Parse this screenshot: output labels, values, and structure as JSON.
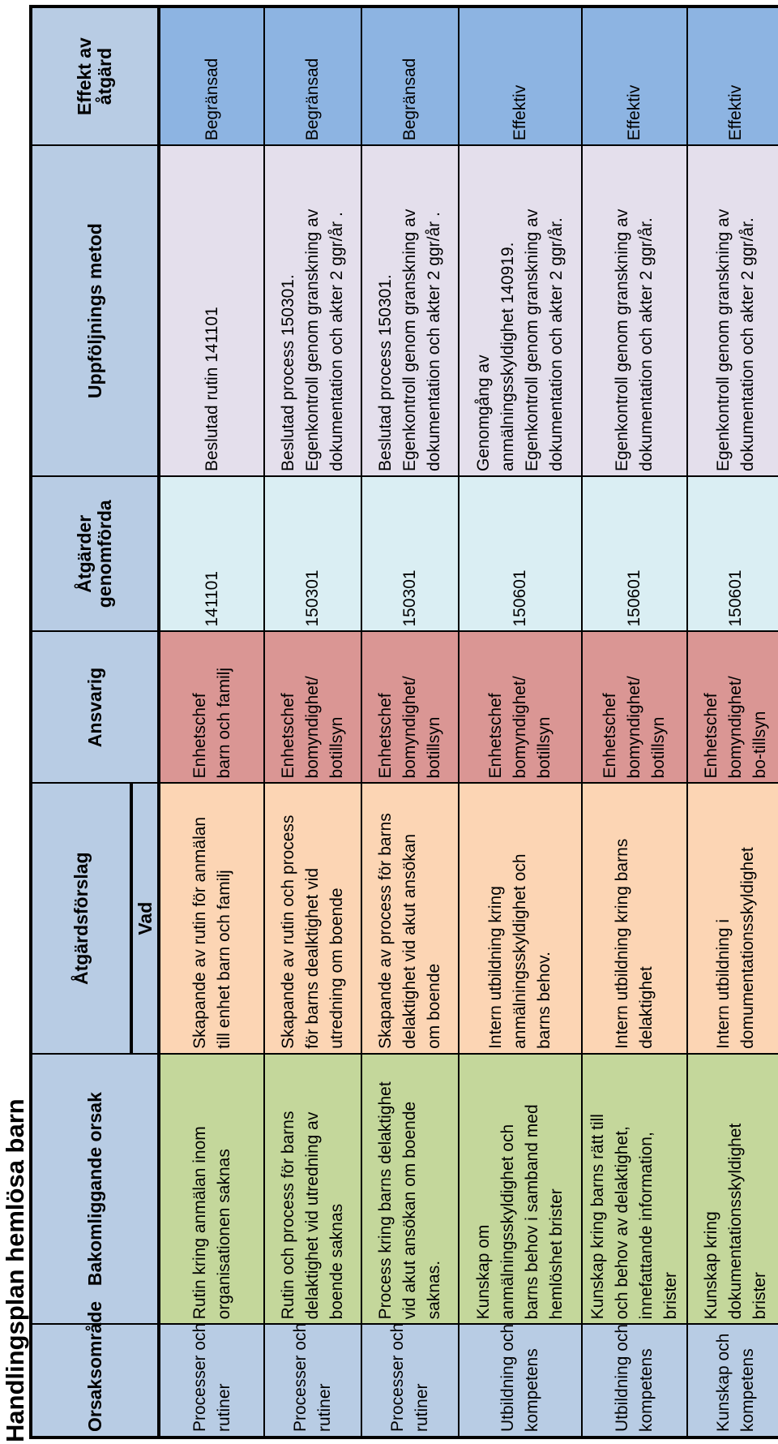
{
  "title": "Handlingsplan hemlösa barn",
  "headers": {
    "area": "Orsaksområde",
    "cause": "Bakomliggande orsak",
    "proposal": "Åtgärdsförslag",
    "proposal_sub": "Vad",
    "responsible": "Ansvarig",
    "done_1": "Åtgärder",
    "done_2": "genomförda",
    "followup": "Uppföljnings metod",
    "effect_1": "Effekt av",
    "effect_2": "åtgärd"
  },
  "rows": [
    {
      "area": [
        "Processer och",
        "rutiner"
      ],
      "cause": [
        "Rutin kring anmälan inom",
        "organisationen saknas"
      ],
      "what": [
        "Skapande av rutin för anmälan",
        "till enhet barn och familj"
      ],
      "responsible": [
        "Enhetschef",
        "barn och familj"
      ],
      "done": "141101",
      "followup": [
        "Beslutad rutin 141101"
      ],
      "effect": "Begränsad"
    },
    {
      "area": [
        "Processer och",
        "rutiner"
      ],
      "cause": [
        "Rutin och process för barns",
        "delaktighet vid utredning av",
        "boende saknas"
      ],
      "what": [
        "Skapande av rutin och process",
        "för barns dealktighet vid",
        "utredning om boende"
      ],
      "responsible": [
        "Enhetschef",
        "bomyndighet/",
        "botillsyn"
      ],
      "done": "150301",
      "followup": [
        "Beslutad process 150301.",
        "Egenkontroll genom granskning av",
        "dokumentation och akter 2 ggr/år ."
      ],
      "effect": "Begränsad"
    },
    {
      "area": [
        "Processer och",
        "rutiner"
      ],
      "cause": [
        "Process kring barns delaktighet",
        "vid akut ansökan om boende",
        "saknas."
      ],
      "what": [
        "Skapande av  process för barns",
        "delaktighet vid akut ansökan",
        "om boende"
      ],
      "responsible": [
        "Enhetschef",
        "bomyndighet/",
        "botillsyn"
      ],
      "done": "150301",
      "followup": [
        "Beslutad process 150301.",
        "Egenkontroll genom granskning av",
        "dokumentation och akter 2 ggr/år ."
      ],
      "effect": "Begränsad"
    },
    {
      "area": [
        "Utbildning och",
        "kompetens"
      ],
      "cause": [
        "Kunskap om",
        "anmälningsskyldighet och",
        "barns behov i samband med",
        "hemlöshet brister"
      ],
      "what": [
        "Intern utbildning kring",
        "anmälningsskyldighet och",
        "barns behov."
      ],
      "responsible": [
        "Enhetschef",
        "bomyndighet/",
        "botillsyn"
      ],
      "done": "150601",
      "followup": [
        "Genomgång av",
        "anmälningsskyldighet 140919.",
        "Egenkontroll genom granskning av",
        "dokumentation och akter 2 ggr/år."
      ],
      "effect": "Effektiv"
    },
    {
      "area": [
        "Utbildning och",
        "kompetens"
      ],
      "cause": [
        "Kunskap kring barns rätt till",
        "och behov av delaktighet,",
        "innefattande information,",
        "brister"
      ],
      "what": [
        "Intern utbildning kring barns",
        "delaktighet"
      ],
      "responsible": [
        "Enhetschef",
        "bomyndighet/",
        "botillsyn"
      ],
      "done": "150601",
      "followup": [
        "Egenkontroll genom granskning av",
        "dokumentation och akter 2 ggr/år."
      ],
      "effect": "Effektiv"
    },
    {
      "area": [
        "Kunskap och",
        "kompetens"
      ],
      "cause": [
        "Kunskap kring",
        "dokumentationsskyldighet",
        "brister"
      ],
      "what": [
        "Intern utbildning i",
        "domumentationsskyldighet"
      ],
      "responsible": [
        "Enhetschef",
        "bomyndighet/",
        "bo-tillsyn"
      ],
      "done": "150601",
      "followup": [
        "Egenkontroll genom granskning av",
        "dokumentation och akter 2 ggr/år."
      ],
      "effect": "Effektiv"
    }
  ]
}
